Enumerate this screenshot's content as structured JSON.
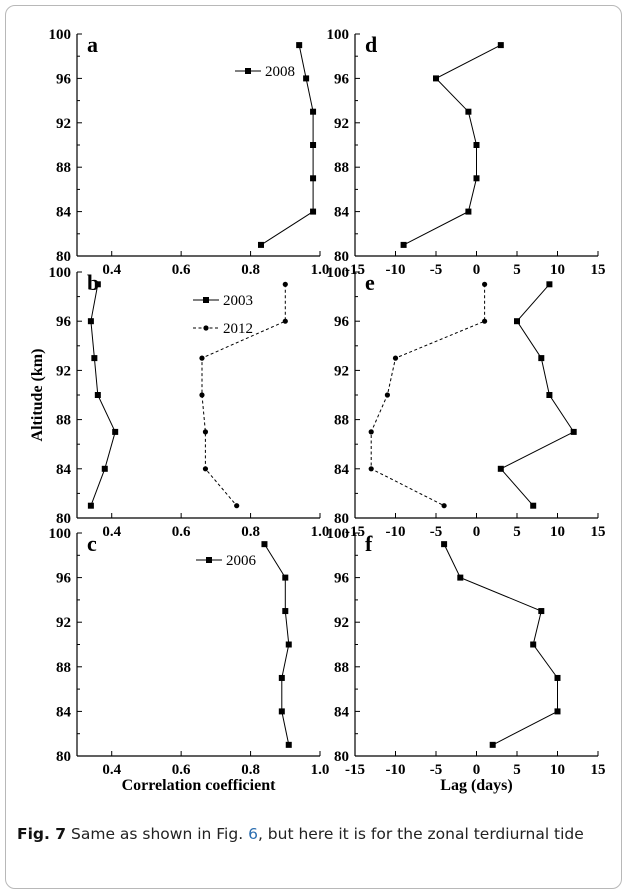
{
  "caption": {
    "label": "Fig. 7",
    "text_before": "  Same as shown in Fig. ",
    "ref": "6",
    "text_after": ", but here it is for the zonal terdiurnal tide"
  },
  "chart_data": [
    {
      "panel": "a",
      "type": "line",
      "xlabel": "",
      "ylabel": "",
      "xlim": [
        0.3,
        1.0
      ],
      "ylim": [
        80,
        100
      ],
      "xticks": [
        "0.4",
        "0.6",
        "0.8",
        "1.0"
      ],
      "yticks": [
        "80",
        "84",
        "88",
        "92",
        "96",
        "100"
      ],
      "series": [
        {
          "name": "2008",
          "marker": "square",
          "dash": "solid",
          "show_legend": true,
          "points": [
            [
              0.94,
              99
            ],
            [
              0.96,
              96
            ],
            [
              0.98,
              93
            ],
            [
              0.98,
              90
            ],
            [
              0.98,
              87
            ],
            [
              0.98,
              84
            ],
            [
              0.83,
              81
            ]
          ]
        }
      ]
    },
    {
      "panel": "d",
      "type": "line",
      "xlabel": "",
      "ylabel": "",
      "xlim": [
        -15,
        15
      ],
      "ylim": [
        80,
        100
      ],
      "xticks": [
        "-15",
        "-10",
        "-5",
        "0",
        "5",
        "10",
        "15"
      ],
      "yticks": [
        "80",
        "84",
        "88",
        "92",
        "96",
        "100"
      ],
      "series": [
        {
          "name": "2008",
          "marker": "square",
          "dash": "solid",
          "show_legend": false,
          "points": [
            [
              3,
              99
            ],
            [
              -5,
              96
            ],
            [
              -1,
              93
            ],
            [
              0,
              90
            ],
            [
              0,
              87
            ],
            [
              -1,
              84
            ],
            [
              -9,
              81
            ]
          ]
        }
      ]
    },
    {
      "panel": "b",
      "type": "line",
      "xlabel": "",
      "ylabel": "Altitude (km)",
      "xlim": [
        0.3,
        1.0
      ],
      "ylim": [
        80,
        100
      ],
      "xticks": [
        "0.4",
        "0.6",
        "0.8",
        "1.0"
      ],
      "yticks": [
        "80",
        "84",
        "88",
        "92",
        "96",
        "100"
      ],
      "series": [
        {
          "name": "2003",
          "marker": "square",
          "dash": "solid",
          "show_legend": true,
          "points": [
            [
              0.36,
              99
            ],
            [
              0.34,
              96
            ],
            [
              0.35,
              93
            ],
            [
              0.36,
              90
            ],
            [
              0.41,
              87
            ],
            [
              0.38,
              84
            ],
            [
              0.34,
              81
            ]
          ]
        },
        {
          "name": "2012",
          "marker": "circle",
          "dash": "dotted",
          "show_legend": true,
          "points": [
            [
              0.9,
              99
            ],
            [
              0.9,
              96
            ],
            [
              0.66,
              93
            ],
            [
              0.66,
              90
            ],
            [
              0.67,
              87
            ],
            [
              0.67,
              84
            ],
            [
              0.76,
              81
            ]
          ]
        }
      ]
    },
    {
      "panel": "e",
      "type": "line",
      "xlabel": "",
      "ylabel": "",
      "xlim": [
        -15,
        15
      ],
      "ylim": [
        80,
        100
      ],
      "xticks": [
        "-15",
        "-10",
        "-5",
        "0",
        "5",
        "10",
        "15"
      ],
      "yticks": [
        "80",
        "84",
        "88",
        "92",
        "96",
        "100"
      ],
      "series": [
        {
          "name": "2003",
          "marker": "square",
          "dash": "solid",
          "show_legend": false,
          "points": [
            [
              9,
              99
            ],
            [
              5,
              96
            ],
            [
              8,
              93
            ],
            [
              9,
              90
            ],
            [
              12,
              87
            ],
            [
              3,
              84
            ],
            [
              7,
              81
            ]
          ]
        },
        {
          "name": "2012",
          "marker": "circle",
          "dash": "dotted",
          "show_legend": false,
          "points": [
            [
              1,
              99
            ],
            [
              1,
              96
            ],
            [
              -10,
              93
            ],
            [
              -11,
              90
            ],
            [
              -13,
              87
            ],
            [
              -13,
              84
            ],
            [
              -4,
              81
            ]
          ]
        }
      ]
    },
    {
      "panel": "c",
      "type": "line",
      "xlabel": "Correlation coefficient",
      "ylabel": "",
      "xlim": [
        0.3,
        1.0
      ],
      "ylim": [
        80,
        100
      ],
      "xticks": [
        "0.4",
        "0.6",
        "0.8",
        "1.0"
      ],
      "yticks": [
        "80",
        "84",
        "88",
        "92",
        "96",
        "100"
      ],
      "series": [
        {
          "name": "2006",
          "marker": "square",
          "dash": "solid",
          "show_legend": true,
          "points": [
            [
              0.84,
              99
            ],
            [
              0.9,
              96
            ],
            [
              0.9,
              93
            ],
            [
              0.91,
              90
            ],
            [
              0.89,
              87
            ],
            [
              0.89,
              84
            ],
            [
              0.91,
              81
            ]
          ]
        }
      ]
    },
    {
      "panel": "f",
      "type": "line",
      "xlabel": "Lag (days)",
      "ylabel": "",
      "xlim": [
        -15,
        15
      ],
      "ylim": [
        80,
        100
      ],
      "xticks": [
        "-15",
        "-10",
        "-5",
        "0",
        "5",
        "10",
        "15"
      ],
      "yticks": [
        "80",
        "84",
        "88",
        "92",
        "96",
        "100"
      ],
      "series": [
        {
          "name": "2006",
          "marker": "square",
          "dash": "solid",
          "show_legend": false,
          "points": [
            [
              -4,
              99
            ],
            [
              -2,
              96
            ],
            [
              8,
              93
            ],
            [
              7,
              90
            ],
            [
              10,
              87
            ],
            [
              10,
              84
            ],
            [
              2,
              81
            ]
          ]
        }
      ]
    }
  ]
}
